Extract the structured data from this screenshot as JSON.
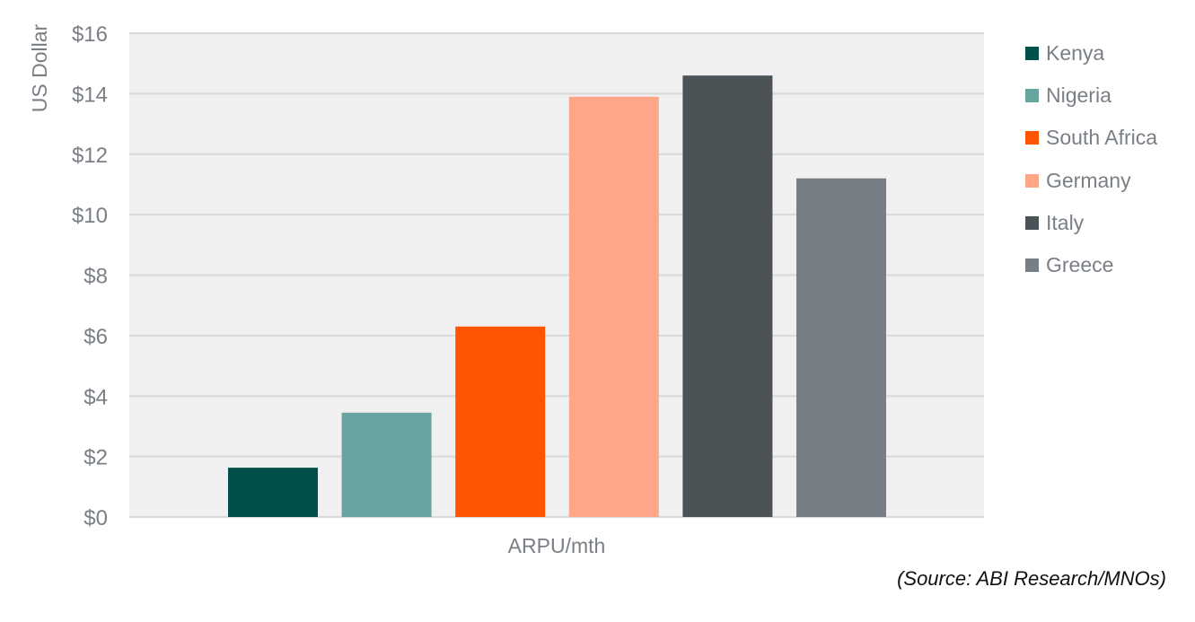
{
  "chart_data": {
    "type": "bar",
    "title": "",
    "xlabel": "ARPU/mth",
    "ylabel": "US Dollar",
    "ylim": [
      0,
      16
    ],
    "yticks": [
      0,
      2,
      4,
      6,
      8,
      10,
      12,
      14,
      16
    ],
    "ytick_labels": [
      "$0",
      "$2",
      "$4",
      "$6",
      "$8",
      "$10",
      "$12",
      "$14",
      "$16"
    ],
    "grid": true,
    "legend_position": "right",
    "categories": [
      "ARPU/mth"
    ],
    "series": [
      {
        "name": "Kenya",
        "values": [
          1.63
        ],
        "color": "#00504a"
      },
      {
        "name": "Nigeria",
        "values": [
          3.45
        ],
        "color": "#69a5a0"
      },
      {
        "name": "South Africa",
        "values": [
          6.3
        ],
        "color": "#ff5500"
      },
      {
        "name": "Germany",
        "values": [
          13.9
        ],
        "color": "#ffa688"
      },
      {
        "name": "Italy",
        "values": [
          14.6
        ],
        "color": "#4b5356"
      },
      {
        "name": "Greece",
        "values": [
          11.2
        ],
        "color": "#787e85"
      }
    ],
    "source": "(Source: ABI Research/MNOs)"
  }
}
